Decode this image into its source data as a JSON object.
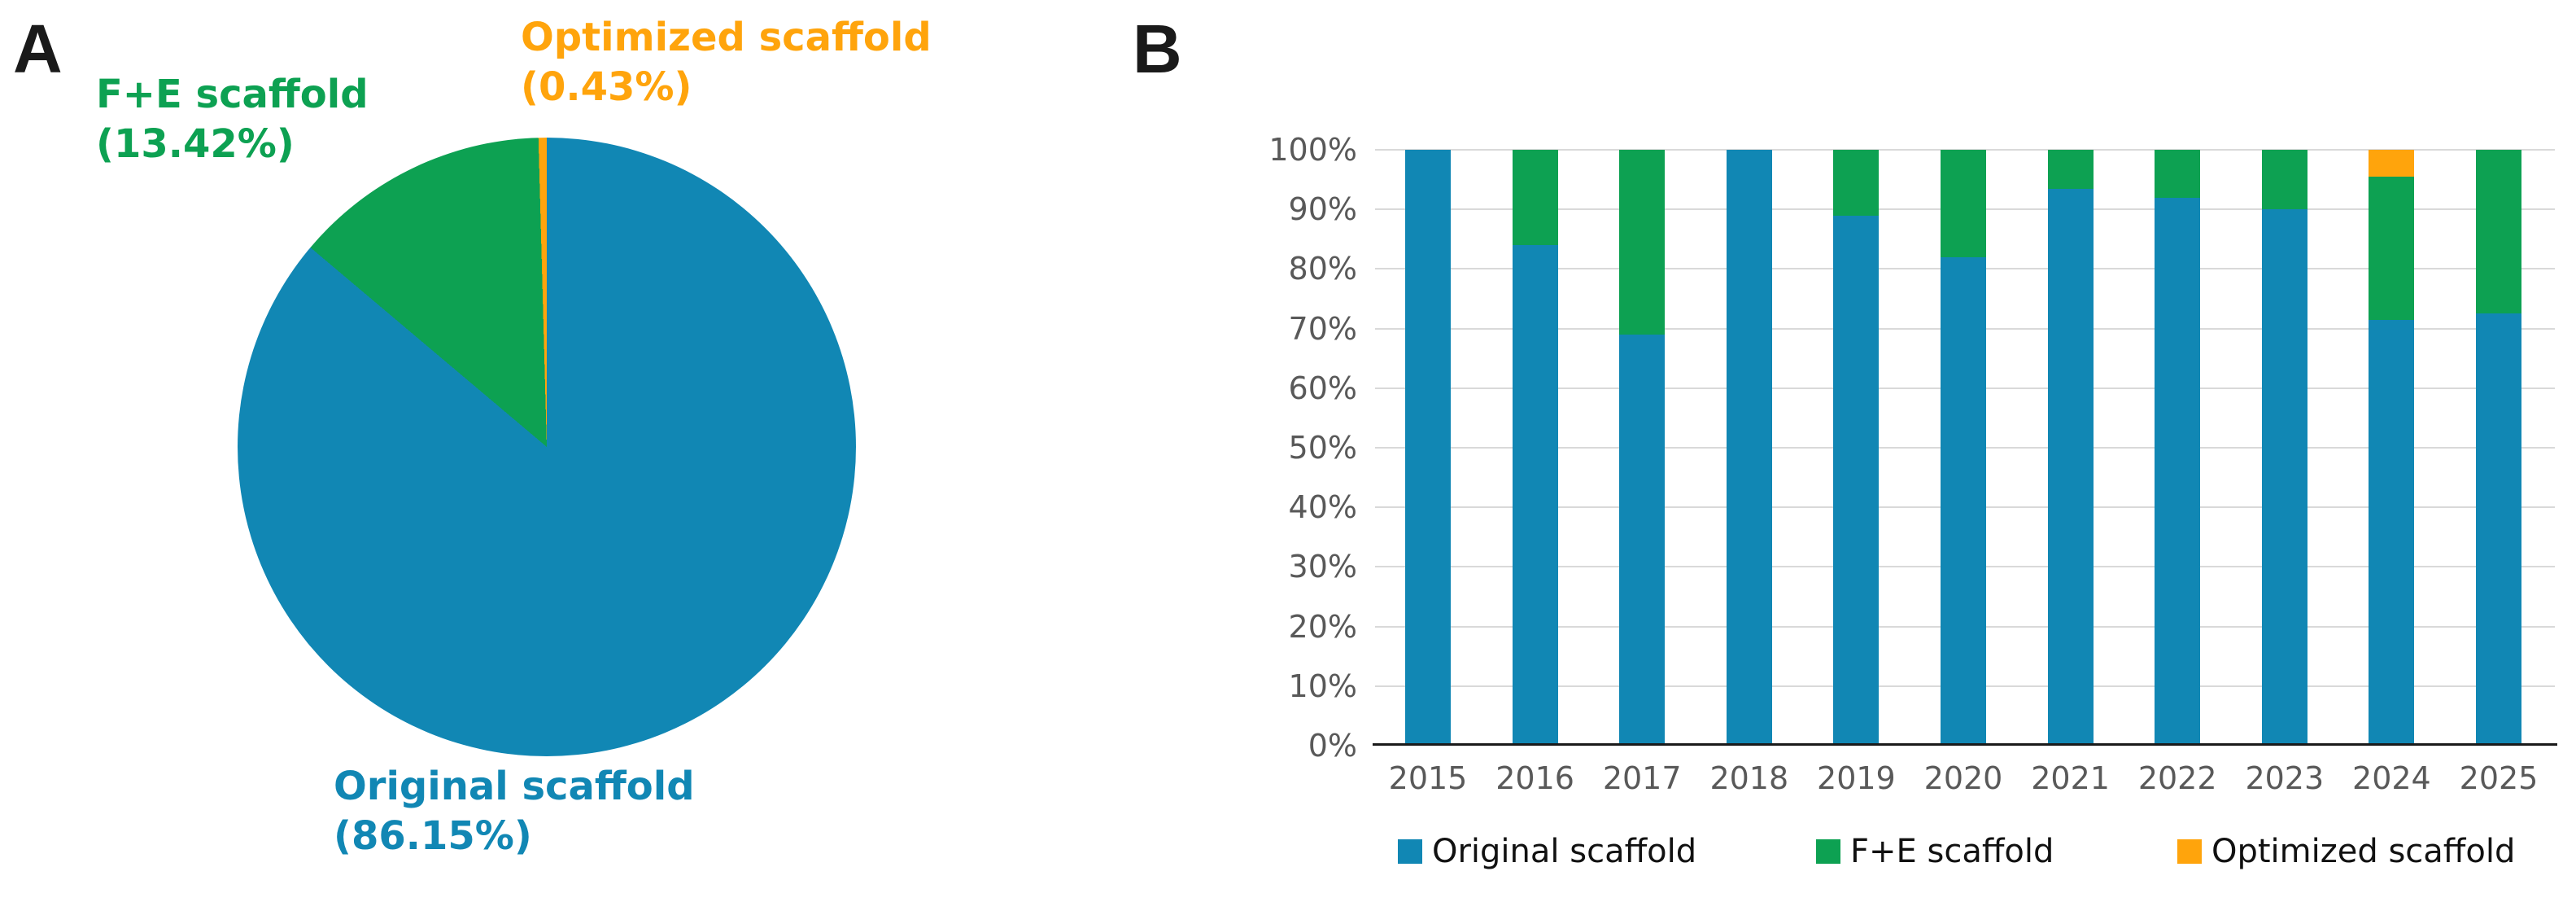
{
  "colors": {
    "blue": "#1187B4",
    "green": "#0DA152",
    "orange": "#FFA40C",
    "gridline": "#D9D9D9",
    "axis": "#1A1A1A",
    "tick_text": "#595959",
    "legend_text": "#111111"
  },
  "panelA": {
    "label": "A",
    "callouts": {
      "fe": {
        "line1": "F+E scaffold",
        "line2": "(13.42%)"
      },
      "optimized": {
        "line1": "Optimized scaffold",
        "line2": "(0.43%)"
      },
      "original": {
        "line1": "Original scaffold",
        "line2": "(86.15%)"
      }
    }
  },
  "panelB": {
    "label": "B",
    "y_tick_labels": [
      "100%",
      "90%",
      "80%",
      "70%",
      "60%",
      "50%",
      "40%",
      "30%",
      "20%",
      "10%",
      "0%"
    ],
    "legend": [
      {
        "name": "Original scaffold",
        "color_key": "blue"
      },
      {
        "name": "F+E scaffold",
        "color_key": "green"
      },
      {
        "name": "Optimized scaffold",
        "color_key": "orange"
      }
    ]
  },
  "chart_data": [
    {
      "type": "pie",
      "panel": "A",
      "direction": "clockwise",
      "start_angle_deg_from_top": 0,
      "slices": [
        {
          "label": "Original scaffold",
          "value": 86.15,
          "color_key": "blue"
        },
        {
          "label": "F+E scaffold",
          "value": 13.42,
          "color_key": "green"
        },
        {
          "label": "Optimized scaffold",
          "value": 0.43,
          "color_key": "orange"
        }
      ]
    },
    {
      "type": "bar",
      "panel": "B",
      "stacked": true,
      "units": "percent",
      "categories": [
        "2015",
        "2016",
        "2017",
        "2018",
        "2019",
        "2020",
        "2021",
        "2022",
        "2023",
        "2024",
        "2025"
      ],
      "series": [
        {
          "name": "Original scaffold",
          "color_key": "blue",
          "values": [
            100,
            84,
            69,
            100,
            89,
            82,
            93.5,
            92,
            90,
            71.5,
            72.5
          ]
        },
        {
          "name": "F+E scaffold",
          "color_key": "green",
          "values": [
            0,
            16,
            31,
            0,
            11,
            18,
            6.5,
            8,
            10,
            24,
            27.5
          ]
        },
        {
          "name": "Optimized scaffold",
          "color_key": "orange",
          "values": [
            0,
            0,
            0,
            0,
            0,
            0,
            0,
            0,
            0,
            4.5,
            0
          ]
        }
      ],
      "ylim": [
        0,
        100
      ],
      "y_ticks_percent": [
        100,
        90,
        80,
        70,
        60,
        50,
        40,
        30,
        20,
        10,
        0
      ],
      "grid": true,
      "legend_position": "bottom"
    }
  ]
}
